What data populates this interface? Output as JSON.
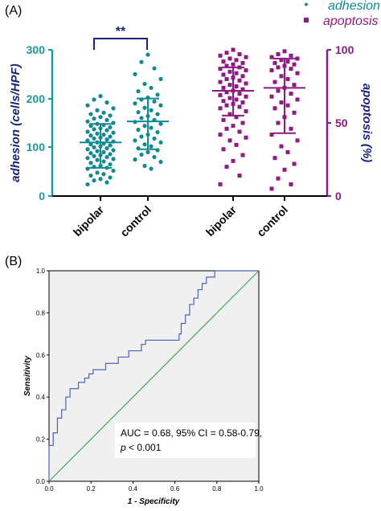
{
  "colors": {
    "adhesion": "#0f8a93",
    "adhesion_axis": "#1b9aa0",
    "apoptosis": "#8f1a83",
    "bracket": "#1a237e",
    "roc_curve": "#4a63b8",
    "diagonal": "#3fae49",
    "plot_bg": "#f0f0f0"
  },
  "panel_a": {
    "label": "(A)",
    "significance": "**",
    "legend": {
      "adhesion": "adhesion",
      "apoptosis": "apoptosis",
      "marker": "•"
    }
  },
  "panel_b": {
    "label": "(B)",
    "auc_line1": "AUC = 0.68, 95% CI = 0.58-0.79,",
    "auc_p_label": "p",
    "auc_p_value": " < 0.001"
  },
  "chart_data": [
    {
      "type": "scatter",
      "panel": "A",
      "categories": [
        "bipolar",
        "control",
        "bipolar",
        "control"
      ],
      "left_axis": {
        "label": "adhesion (cells/HPF)",
        "ylim": [
          0,
          300
        ],
        "ticks": [
          "0",
          "100",
          "200",
          "300"
        ]
      },
      "right_axis": {
        "label": "apoptosis (%)",
        "ylim": [
          0,
          100
        ],
        "ticks": [
          "0",
          "50",
          "100"
        ]
      },
      "series": [
        {
          "name": "adhesion",
          "axis": "left",
          "groups": [
            {
              "category": "bipolar",
              "mean": 110,
              "sd_low": 58,
              "sd_high": 148,
              "values": [
                205,
                198,
                192,
                186,
                180,
                176,
                171,
                168,
                165,
                162,
                159,
                156,
                153,
                150,
                148,
                146,
                144,
                141,
                139,
                137,
                135,
                132,
                130,
                128,
                126,
                124,
                122,
                120,
                118,
                116,
                114,
                112,
                110,
                108,
                106,
                104,
                102,
                100,
                98,
                96,
                94,
                92,
                90,
                88,
                86,
                84,
                82,
                80,
                78,
                76,
                74,
                71,
                68,
                65,
                62,
                60,
                58,
                56,
                52,
                48,
                45,
                42,
                38,
                35,
                32,
                28,
                24
              ]
            },
            {
              "category": "control",
              "mean": 153,
              "sd_low": 96,
              "sd_high": 200,
              "values": [
                290,
                275,
                262,
                250,
                240,
                230,
                222,
                215,
                208,
                202,
                198,
                194,
                190,
                186,
                181,
                176,
                172,
                168,
                164,
                160,
                156,
                152,
                148,
                144,
                140,
                136,
                131,
                126,
                122,
                118,
                114,
                110,
                106,
                102,
                98,
                94,
                90,
                85,
                80,
                75,
                70,
                62,
                56
              ]
            }
          ]
        },
        {
          "name": "apoptosis",
          "axis": "right",
          "groups": [
            {
              "category": "bipolar",
              "mean": 72,
              "sd_low": 55,
              "sd_high": 88,
              "values": [
                100,
                98,
                97,
                96,
                95,
                94,
                93,
                92,
                91,
                90,
                89,
                88,
                87,
                86,
                85,
                84,
                83,
                82,
                81,
                80,
                79,
                78,
                77,
                76,
                75,
                74,
                73,
                72,
                71,
                70,
                69,
                68,
                67,
                66,
                65,
                64,
                63,
                62,
                61,
                60,
                58,
                56,
                54,
                52,
                50,
                48,
                46,
                44,
                42,
                40,
                38,
                35,
                32,
                28,
                24,
                20,
                14,
                8
              ]
            },
            {
              "category": "control",
              "mean": 74,
              "sd_low": 43,
              "sd_high": 94,
              "values": [
                99,
                97,
                96,
                95,
                94,
                93,
                92,
                91,
                90,
                89,
                88,
                87,
                86,
                84,
                82,
                80,
                78,
                76,
                74,
                72,
                70,
                68,
                66,
                64,
                62,
                60,
                57,
                54,
                50,
                46,
                42,
                38,
                34,
                30,
                26,
                22,
                18,
                12,
                8,
                5
              ]
            }
          ]
        }
      ]
    },
    {
      "type": "line",
      "panel": "B",
      "xlabel": "1 - Specificity",
      "ylabel": "Sensitivity",
      "xlim": [
        0,
        1
      ],
      "ylim": [
        0,
        1
      ],
      "xticks": [
        "0.0",
        "0.2",
        "0.4",
        "0.6",
        "0.8",
        "1.0"
      ],
      "yticks": [
        "0.0",
        "0.2",
        "0.4",
        "0.6",
        "0.8",
        "1.0"
      ],
      "series": [
        {
          "name": "ROC",
          "x": [
            0,
            0,
            0.02,
            0.02,
            0.04,
            0.04,
            0.06,
            0.06,
            0.08,
            0.08,
            0.1,
            0.1,
            0.14,
            0.14,
            0.17,
            0.17,
            0.19,
            0.19,
            0.21,
            0.21,
            0.27,
            0.27,
            0.33,
            0.33,
            0.38,
            0.38,
            0.44,
            0.44,
            0.46,
            0.46,
            0.62,
            0.62,
            0.63,
            0.63,
            0.65,
            0.65,
            0.67,
            0.67,
            0.69,
            0.69,
            0.71,
            0.71,
            0.73,
            0.73,
            0.75,
            0.75,
            0.79,
            0.79,
            1.0
          ],
          "y": [
            0,
            0.17,
            0.17,
            0.23,
            0.23,
            0.3,
            0.3,
            0.34,
            0.34,
            0.4,
            0.4,
            0.44,
            0.44,
            0.47,
            0.47,
            0.49,
            0.49,
            0.51,
            0.51,
            0.53,
            0.53,
            0.56,
            0.56,
            0.59,
            0.59,
            0.62,
            0.62,
            0.65,
            0.65,
            0.67,
            0.67,
            0.7,
            0.7,
            0.75,
            0.75,
            0.79,
            0.79,
            0.84,
            0.84,
            0.87,
            0.87,
            0.91,
            0.91,
            0.94,
            0.94,
            0.97,
            0.97,
            1.0,
            1.0
          ]
        },
        {
          "name": "reference",
          "x": [
            0,
            1
          ],
          "y": [
            0,
            1
          ]
        }
      ]
    }
  ]
}
